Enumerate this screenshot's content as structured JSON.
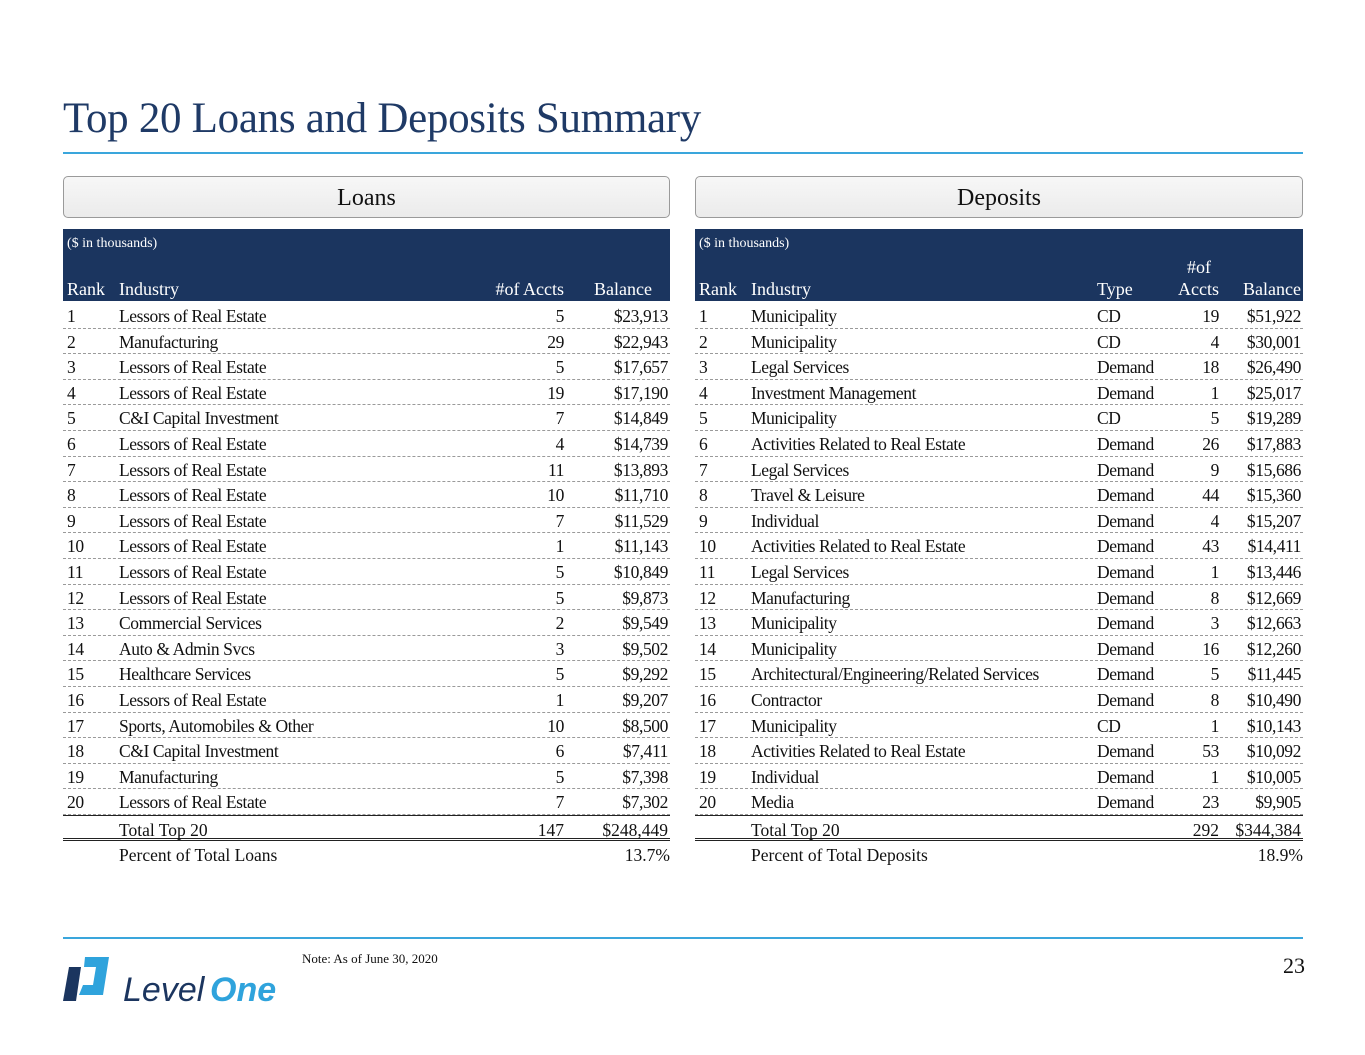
{
  "title": "Top 20 Loans and Deposits Summary",
  "loans": {
    "panel": "Loans",
    "note": "($ in thousands)",
    "headers": {
      "rank": "Rank",
      "industry": "Industry",
      "accts": "#of Accts",
      "balance": "Balance"
    },
    "rows": [
      [
        "1",
        "Lessors of Real Estate",
        "5",
        "$23,913"
      ],
      [
        "2",
        "Manufacturing",
        "29",
        "$22,943"
      ],
      [
        "3",
        "Lessors of Real Estate",
        "5",
        "$17,657"
      ],
      [
        "4",
        "Lessors of Real Estate",
        "19",
        "$17,190"
      ],
      [
        "5",
        "C&I Capital Investment",
        "7",
        "$14,849"
      ],
      [
        "6",
        "Lessors of Real Estate",
        "4",
        "$14,739"
      ],
      [
        "7",
        "Lessors of Real Estate",
        "11",
        "$13,893"
      ],
      [
        "8",
        "Lessors of Real Estate",
        "10",
        "$11,710"
      ],
      [
        "9",
        "Lessors of Real Estate",
        "7",
        "$11,529"
      ],
      [
        "10",
        "Lessors of Real Estate",
        "1",
        "$11,143"
      ],
      [
        "11",
        "Lessors of Real Estate",
        "5",
        "$10,849"
      ],
      [
        "12",
        "Lessors of Real Estate",
        "5",
        "$9,873"
      ],
      [
        "13",
        "Commercial Services",
        "2",
        "$9,549"
      ],
      [
        "14",
        "Auto & Admin Svcs",
        "3",
        "$9,502"
      ],
      [
        "15",
        "Healthcare Services",
        "5",
        "$9,292"
      ],
      [
        "16",
        "Lessors of Real Estate",
        "1",
        "$9,207"
      ],
      [
        "17",
        "Sports, Automobiles & Other",
        "10",
        "$8,500"
      ],
      [
        "18",
        "C&I Capital Investment",
        "6",
        "$7,411"
      ],
      [
        "19",
        "Manufacturing",
        "5",
        "$7,398"
      ],
      [
        "20",
        "Lessors of Real Estate",
        "7",
        "$7,302"
      ]
    ],
    "total": {
      "label": "Total Top 20",
      "accts": "147",
      "balance": "$248,449"
    },
    "percent": {
      "label": "Percent of Total Loans",
      "value": "13.7%"
    }
  },
  "deposits": {
    "panel": "Deposits",
    "note": "($ in thousands)",
    "headers": {
      "rank": "Rank",
      "industry": "Industry",
      "type": "Type",
      "accts_top": "#of",
      "accts": "Accts",
      "balance": "Balance"
    },
    "rows": [
      [
        "1",
        "Municipality",
        "CD",
        "19",
        "$51,922"
      ],
      [
        "2",
        "Municipality",
        "CD",
        "4",
        "$30,001"
      ],
      [
        "3",
        "Legal Services",
        "Demand",
        "18",
        "$26,490"
      ],
      [
        "4",
        "Investment Management",
        "Demand",
        "1",
        "$25,017"
      ],
      [
        "5",
        "Municipality",
        "CD",
        "5",
        "$19,289"
      ],
      [
        "6",
        "Activities Related to Real Estate",
        "Demand",
        "26",
        "$17,883"
      ],
      [
        "7",
        "Legal Services",
        "Demand",
        "9",
        "$15,686"
      ],
      [
        "8",
        "Travel & Leisure",
        "Demand",
        "44",
        "$15,360"
      ],
      [
        "9",
        "Individual",
        "Demand",
        "4",
        "$15,207"
      ],
      [
        "10",
        "Activities Related to Real Estate",
        "Demand",
        "43",
        "$14,411"
      ],
      [
        "11",
        "Legal Services",
        "Demand",
        "1",
        "$13,446"
      ],
      [
        "12",
        "Manufacturing",
        "Demand",
        "8",
        "$12,669"
      ],
      [
        "13",
        "Municipality",
        "Demand",
        "3",
        "$12,663"
      ],
      [
        "14",
        "Municipality",
        "Demand",
        "16",
        "$12,260"
      ],
      [
        "15",
        "Architectural/Engineering/Related Services",
        "Demand",
        "5",
        "$11,445"
      ],
      [
        "16",
        "Contractor",
        "Demand",
        "8",
        "$10,490"
      ],
      [
        "17",
        "Municipality",
        "CD",
        "1",
        "$10,143"
      ],
      [
        "18",
        "Activities Related to Real Estate",
        "Demand",
        "53",
        "$10,092"
      ],
      [
        "19",
        "Individual",
        "Demand",
        "1",
        "$10,005"
      ],
      [
        "20",
        "Media",
        "Demand",
        "23",
        "$9,905"
      ]
    ],
    "total": {
      "label": "Total Top 20",
      "accts": "292",
      "balance": "$344,384"
    },
    "percent": {
      "label": "Percent of Total Deposits",
      "value": "18.9%"
    }
  },
  "footer": {
    "note": "Note: As of June 30, 2020",
    "page": "23",
    "logo_text_a": "Level",
    "logo_text_b": "One"
  },
  "colors": {
    "title": "#1f3a66",
    "header_bg": "#1b355f",
    "accent": "#3aa6dc"
  }
}
